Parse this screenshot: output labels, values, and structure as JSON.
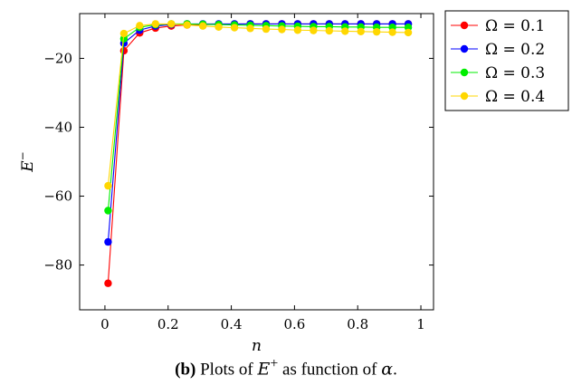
{
  "chart_data": {
    "type": "line",
    "xlabel": "n",
    "ylabel": "E",
    "ylabel_sup": "−",
    "xlim": [
      -0.08,
      1.04
    ],
    "ylim": [
      -93,
      -7
    ],
    "xticks": [
      0,
      0.2,
      0.4,
      0.6,
      0.8,
      1
    ],
    "xtick_labels": [
      "0",
      "0.2",
      "0.4",
      "0.6",
      "0.8",
      "1"
    ],
    "yticks": [
      -80,
      -60,
      -40,
      -20
    ],
    "ytick_labels": [
      "−80",
      "−60",
      "−40",
      "−20"
    ],
    "grid": false,
    "legend_position": "outside-top-right",
    "x": [
      0.01,
      0.06,
      0.11,
      0.16,
      0.21,
      0.26,
      0.31,
      0.36,
      0.41,
      0.46,
      0.51,
      0.56,
      0.61,
      0.66,
      0.71,
      0.76,
      0.81,
      0.86,
      0.91,
      0.96
    ],
    "series": [
      {
        "name": "Ω = 0.1",
        "color": "#ff0000",
        "values": [
          -85.3,
          -17.8,
          -12.6,
          -11.2,
          -10.6,
          -10.3,
          -10.2,
          -10.1,
          -10.05,
          -10.0,
          -10.0,
          -10.0,
          -10.0,
          -10.0,
          -10.0,
          -10.0,
          -10.0,
          -10.0,
          -10.0,
          -10.0
        ]
      },
      {
        "name": "Ω = 0.2",
        "color": "#0000ff",
        "values": [
          -73.3,
          -15.6,
          -11.8,
          -10.6,
          -10.2,
          -10.0,
          -10.0,
          -10.0,
          -10.0,
          -10.0,
          -10.0,
          -10.0,
          -10.0,
          -10.0,
          -10.0,
          -10.0,
          -10.0,
          -10.0,
          -10.0,
          -10.0
        ]
      },
      {
        "name": "Ω = 0.3",
        "color": "#00ee00",
        "values": [
          -64.2,
          -14.3,
          -11.0,
          -10.2,
          -10.0,
          -10.0,
          -10.1,
          -10.2,
          -10.3,
          -10.4,
          -10.5,
          -10.6,
          -10.7,
          -10.8,
          -10.8,
          -10.9,
          -10.9,
          -11.0,
          -11.0,
          -11.0
        ]
      },
      {
        "name": "Ω = 0.4",
        "color": "#ffd700",
        "values": [
          -57.0,
          -12.8,
          -10.5,
          -10.0,
          -10.0,
          -10.3,
          -10.6,
          -10.9,
          -11.1,
          -11.3,
          -11.5,
          -11.6,
          -11.8,
          -11.9,
          -12.0,
          -12.1,
          -12.2,
          -12.3,
          -12.4,
          -12.5
        ]
      }
    ]
  },
  "caption": {
    "label": "(b)",
    "text_before": " Plots of ",
    "math_var": "E",
    "math_sup": "+",
    "text_middle": " as function of ",
    "math_greek": "α",
    "text_after": "."
  }
}
